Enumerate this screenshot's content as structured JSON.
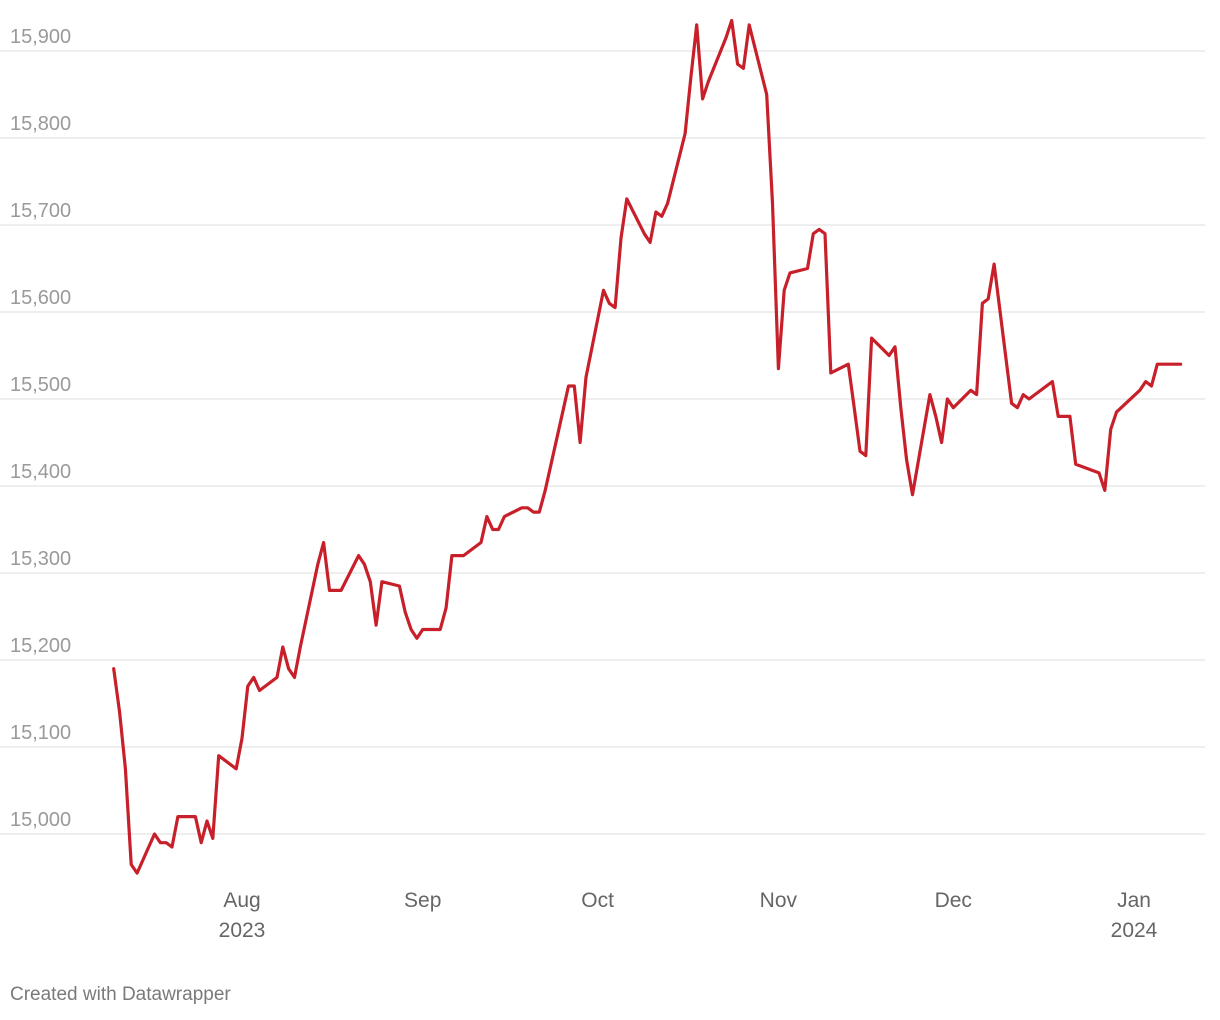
{
  "chart_data": {
    "type": "line",
    "title": "",
    "xlabel": "",
    "ylabel": "",
    "ylim": [
      14950,
      15940
    ],
    "xlim": [
      "2023-07-10",
      "2024-01-10"
    ],
    "y_ticks": [
      15000,
      15100,
      15200,
      15300,
      15400,
      15500,
      15600,
      15700,
      15800,
      15900
    ],
    "y_tick_labels": [
      "15,000",
      "15,100",
      "15,200",
      "15,300",
      "15,400",
      "15,500",
      "15,600",
      "15,700",
      "15,800",
      "15,900"
    ],
    "x_ticks": [
      {
        "date": "2023-08-01",
        "label": "Aug",
        "year": "2023"
      },
      {
        "date": "2023-09-01",
        "label": "Sep",
        "year": ""
      },
      {
        "date": "2023-10-01",
        "label": "Oct",
        "year": ""
      },
      {
        "date": "2023-11-01",
        "label": "Nov",
        "year": ""
      },
      {
        "date": "2023-12-01",
        "label": "Dec",
        "year": ""
      },
      {
        "date": "2024-01-01",
        "label": "Jan",
        "year": "2024"
      }
    ],
    "grid": true,
    "line_color": "#c8202a",
    "series": [
      {
        "name": "",
        "x": [
          "2023-07-10",
          "2023-07-11",
          "2023-07-12",
          "2023-07-13",
          "2023-07-14",
          "2023-07-17",
          "2023-07-18",
          "2023-07-19",
          "2023-07-20",
          "2023-07-21",
          "2023-07-24",
          "2023-07-25",
          "2023-07-26",
          "2023-07-27",
          "2023-07-28",
          "2023-07-31",
          "2023-08-01",
          "2023-08-02",
          "2023-08-03",
          "2023-08-04",
          "2023-08-07",
          "2023-08-08",
          "2023-08-09",
          "2023-08-10",
          "2023-08-11",
          "2023-08-14",
          "2023-08-15",
          "2023-08-16",
          "2023-08-17",
          "2023-08-18",
          "2023-08-21",
          "2023-08-22",
          "2023-08-23",
          "2023-08-24",
          "2023-08-25",
          "2023-08-28",
          "2023-08-29",
          "2023-08-30",
          "2023-08-31",
          "2023-09-01",
          "2023-09-04",
          "2023-09-05",
          "2023-09-06",
          "2023-09-07",
          "2023-09-08",
          "2023-09-11",
          "2023-09-12",
          "2023-09-13",
          "2023-09-14",
          "2023-09-15",
          "2023-09-18",
          "2023-09-19",
          "2023-09-20",
          "2023-09-21",
          "2023-09-22",
          "2023-09-25",
          "2023-09-26",
          "2023-09-27",
          "2023-09-28",
          "2023-09-29",
          "2023-10-02",
          "2023-10-03",
          "2023-10-04",
          "2023-10-05",
          "2023-10-06",
          "2023-10-09",
          "2023-10-10",
          "2023-10-11",
          "2023-10-12",
          "2023-10-13",
          "2023-10-16",
          "2023-10-17",
          "2023-10-18",
          "2023-10-19",
          "2023-10-20",
          "2023-10-23",
          "2023-10-24",
          "2023-10-25",
          "2023-10-26",
          "2023-10-27",
          "2023-10-30",
          "2023-10-31",
          "2023-11-01",
          "2023-11-02",
          "2023-11-03",
          "2023-11-06",
          "2023-11-07",
          "2023-11-08",
          "2023-11-09",
          "2023-11-10",
          "2023-11-13",
          "2023-11-14",
          "2023-11-15",
          "2023-11-16",
          "2023-11-17",
          "2023-11-20",
          "2023-11-21",
          "2023-11-22",
          "2023-11-23",
          "2023-11-24",
          "2023-11-27",
          "2023-11-28",
          "2023-11-29",
          "2023-11-30",
          "2023-12-01",
          "2023-12-04",
          "2023-12-05",
          "2023-12-06",
          "2023-12-07",
          "2023-12-08",
          "2023-12-11",
          "2023-12-12",
          "2023-12-13",
          "2023-12-14",
          "2023-12-15",
          "2023-12-18",
          "2023-12-19",
          "2023-12-20",
          "2023-12-21",
          "2023-12-22",
          "2023-12-26",
          "2023-12-27",
          "2023-12-28",
          "2023-12-29",
          "2024-01-02",
          "2024-01-03",
          "2024-01-04",
          "2024-01-05",
          "2024-01-08",
          "2024-01-09"
        ],
        "values": [
          15190,
          15140,
          15075,
          14965,
          14955,
          15000,
          14990,
          14990,
          14985,
          15020,
          15020,
          14990,
          15015,
          14995,
          15090,
          15075,
          15110,
          15170,
          15180,
          15165,
          15180,
          15215,
          15190,
          15180,
          15215,
          15310,
          15335,
          15280,
          15280,
          15280,
          15320,
          15310,
          15290,
          15240,
          15290,
          15285,
          15255,
          15235,
          15225,
          15235,
          15235,
          15260,
          15320,
          15320,
          15320,
          15335,
          15365,
          15350,
          15350,
          15365,
          15375,
          15375,
          15370,
          15370,
          15395,
          15485,
          15515,
          15515,
          15450,
          15525,
          15625,
          15610,
          15605,
          15685,
          15730,
          15690,
          15680,
          15715,
          15710,
          15725,
          15805,
          15870,
          15930,
          15845,
          15865,
          15915,
          15935,
          15885,
          15880,
          15930,
          15850,
          15725,
          15535,
          15625,
          15645,
          15650,
          15690,
          15695,
          15690,
          15530,
          15540,
          15490,
          15440,
          15435,
          15570,
          15550,
          15560,
          15490,
          15430,
          15390,
          15505,
          15480,
          15450,
          15500,
          15490,
          15510,
          15505,
          15610,
          15615,
          15655,
          15495,
          15490,
          15505,
          15500,
          15505,
          15520,
          15480,
          15480,
          15480,
          15425,
          15415,
          15395,
          15465,
          15485,
          15510,
          15520,
          15515,
          15540,
          15540,
          15540
        ]
      }
    ]
  },
  "footer": {
    "credit": "Created with Datawrapper"
  }
}
